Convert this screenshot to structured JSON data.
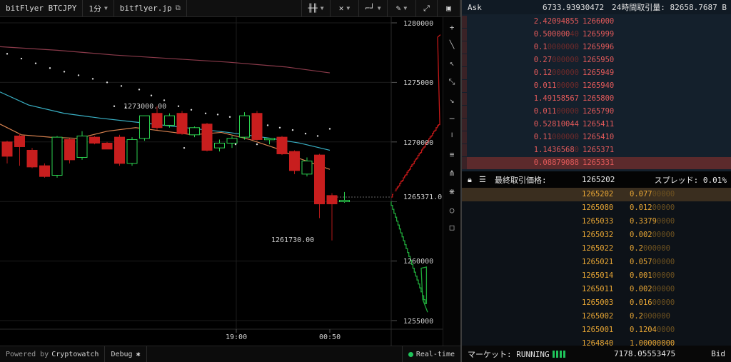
{
  "toolbar": {
    "symbol": "bitFlyer BTCJPY",
    "interval": "1分",
    "exchange_link": "bitflyer.jp",
    "tools": [
      "candles-icon",
      "indicators-icon",
      "line-style-icon",
      "draw-pen-icon",
      "fullscreen-icon",
      "screenshot-icon"
    ]
  },
  "chart": {
    "y_labels": [
      "1280000",
      "1275000",
      "1270000",
      "1265000",
      "1260000",
      "1255000"
    ],
    "x_labels": [
      "19:00",
      "00:50"
    ],
    "high_annotation": "1273000.00",
    "low_annotation": "1261730.00",
    "last_price_label": "1265371.0",
    "colors": {
      "up": "#1f7a35",
      "down": "#c81e1e",
      "ma_fast": "#d8824f",
      "ma_mid": "#39b0c4",
      "ma_slow": "#8a3a4a",
      "depth_ask": "#c21818",
      "depth_bid": "#1fa83a"
    }
  },
  "drawing_tools": [
    "plus-icon",
    "line-icon",
    "arrow-up-icon",
    "ray-icon",
    "arrow-down-icon",
    "horizontal-line-icon",
    "vertical-line-icon",
    "parallel-lines-icon",
    "pitchfork-icon",
    "fibonacci-icon",
    "circle-icon",
    "rectangle-icon"
  ],
  "footer": {
    "powered_by": "Powered by",
    "provider": "Cryptowatch",
    "debug": "Debug",
    "realtime": "Real-time"
  },
  "orderbook": {
    "ask_label": "Ask",
    "ask_volume": "6733.93930472",
    "volume_24h": "24時間取引量: 82658.7687 B",
    "asks": [
      {
        "qty": "2.42094855",
        "qty_main": "2.42094855",
        "qty_dim": "",
        "price": "1266000"
      },
      {
        "qty": "0.50000040",
        "qty_main": "0.500000",
        "qty_dim": "40",
        "price": "1265999"
      },
      {
        "qty": "0.10000000",
        "qty_main": "0.1",
        "qty_dim": "0000000",
        "price": "1265996"
      },
      {
        "qty": "0.27000000",
        "qty_main": "0.27",
        "qty_dim": "000000",
        "price": "1265950"
      },
      {
        "qty": "0.12000000",
        "qty_main": "0.12",
        "qty_dim": "000000",
        "price": "1265949"
      },
      {
        "qty": "0.01100000",
        "qty_main": "0.011",
        "qty_dim": "00000",
        "price": "1265940"
      },
      {
        "qty": "1.49158567",
        "qty_main": "1.49158567",
        "qty_dim": "",
        "price": "1265800"
      },
      {
        "qty": "0.01100000",
        "qty_main": "0.011",
        "qty_dim": "00000",
        "price": "1265790"
      },
      {
        "qty": "0.52810044",
        "qty_main": "0.52810044",
        "qty_dim": "",
        "price": "1265411"
      },
      {
        "qty": "0.11000000",
        "qty_main": "0.11",
        "qty_dim": "000000",
        "price": "1265410"
      },
      {
        "qty": "1.14365680",
        "qty_main": "1.1436568",
        "qty_dim": "0",
        "price": "1265371"
      },
      {
        "qty": "0.08879088",
        "qty_main": "0.08879088",
        "qty_dim": "",
        "price": "1265331"
      }
    ],
    "last_trade_label": "最終取引価格:",
    "last_trade_price": "1265202",
    "spread": "スプレッド: 0.01%",
    "bids": [
      {
        "price": "1265202",
        "qty_main": "0.077",
        "qty_dim": "00000"
      },
      {
        "price": "1265080",
        "qty_main": "0.012",
        "qty_dim": "00000"
      },
      {
        "price": "1265033",
        "qty_main": "0.3379",
        "qty_dim": "0000"
      },
      {
        "price": "1265032",
        "qty_main": "0.002",
        "qty_dim": "00000"
      },
      {
        "price": "1265022",
        "qty_main": "0.2",
        "qty_dim": "000000"
      },
      {
        "price": "1265021",
        "qty_main": "0.057",
        "qty_dim": "00000"
      },
      {
        "price": "1265014",
        "qty_main": "0.001",
        "qty_dim": "00000"
      },
      {
        "price": "1265011",
        "qty_main": "0.002",
        "qty_dim": "00000"
      },
      {
        "price": "1265003",
        "qty_main": "0.016",
        "qty_dim": "00000"
      },
      {
        "price": "1265002",
        "qty_main": "0.2",
        "qty_dim": "000000"
      },
      {
        "price": "1265001",
        "qty_main": "0.1204",
        "qty_dim": "0000"
      },
      {
        "price": "1264840",
        "qty_main": "1.00000000",
        "qty_dim": ""
      }
    ],
    "market_status": "マーケット: RUNNING",
    "bid_volume": "7178.05553475",
    "bid_label": "Bid"
  }
}
